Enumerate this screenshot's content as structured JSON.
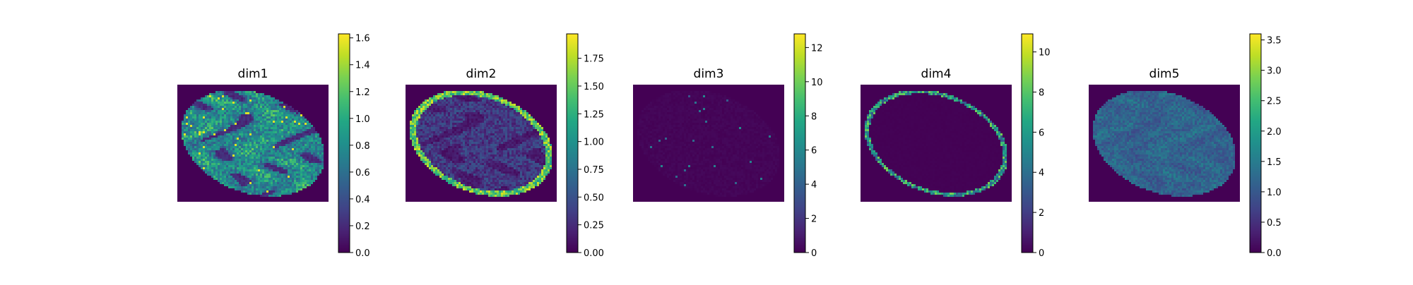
{
  "chart_data": [
    {
      "type": "heatmap",
      "title": "dim1",
      "colormap": "viridis",
      "colorbar": {
        "range": [
          0.0,
          1.63
        ],
        "ticks": [
          0.0,
          0.2,
          0.4,
          0.6,
          0.8,
          1.0,
          1.2,
          1.4,
          1.6
        ],
        "tick_labels": [
          "0.0",
          "0.2",
          "0.4",
          "0.6",
          "0.8",
          "1.0",
          "1.2",
          "1.4",
          "1.6"
        ]
      },
      "pattern": "interior",
      "background_value": 0.0,
      "typical_tissue_value": 0.95
    },
    {
      "type": "heatmap",
      "title": "dim2",
      "colormap": "viridis",
      "colorbar": {
        "range": [
          0.0,
          1.97
        ],
        "ticks": [
          0.0,
          0.25,
          0.5,
          0.75,
          1.0,
          1.25,
          1.5,
          1.75
        ],
        "tick_labels": [
          "0.00",
          "0.25",
          "0.50",
          "0.75",
          "1.00",
          "1.25",
          "1.50",
          "1.75"
        ]
      },
      "pattern": "edge",
      "background_value": 0.0,
      "typical_tissue_value": 0.45
    },
    {
      "type": "heatmap",
      "title": "dim3",
      "colormap": "viridis",
      "colorbar": {
        "range": [
          0,
          12.8
        ],
        "ticks": [
          0,
          2,
          4,
          6,
          8,
          10,
          12
        ],
        "tick_labels": [
          "0",
          "2",
          "4",
          "6",
          "8",
          "10",
          "12"
        ]
      },
      "pattern": "sparse",
      "background_value": 0.0,
      "typical_tissue_value": 0.3
    },
    {
      "type": "heatmap",
      "title": "dim4",
      "colormap": "viridis",
      "colorbar": {
        "range": [
          0,
          10.9
        ],
        "ticks": [
          0,
          2,
          4,
          6,
          8,
          10
        ],
        "tick_labels": [
          "0",
          "2",
          "4",
          "6",
          "8",
          "10"
        ]
      },
      "pattern": "rim",
      "background_value": 0.0,
      "typical_tissue_value": 0.1
    },
    {
      "type": "heatmap",
      "title": "dim5",
      "colormap": "viridis",
      "colorbar": {
        "range": [
          0.0,
          3.6
        ],
        "ticks": [
          0.0,
          0.5,
          1.0,
          1.5,
          2.0,
          2.5,
          3.0,
          3.5
        ],
        "tick_labels": [
          "0.0",
          "0.5",
          "1.0",
          "1.5",
          "2.0",
          "2.5",
          "3.0",
          "3.5"
        ]
      },
      "pattern": "uniform",
      "background_value": 0.0,
      "typical_tissue_value": 1.1
    }
  ]
}
